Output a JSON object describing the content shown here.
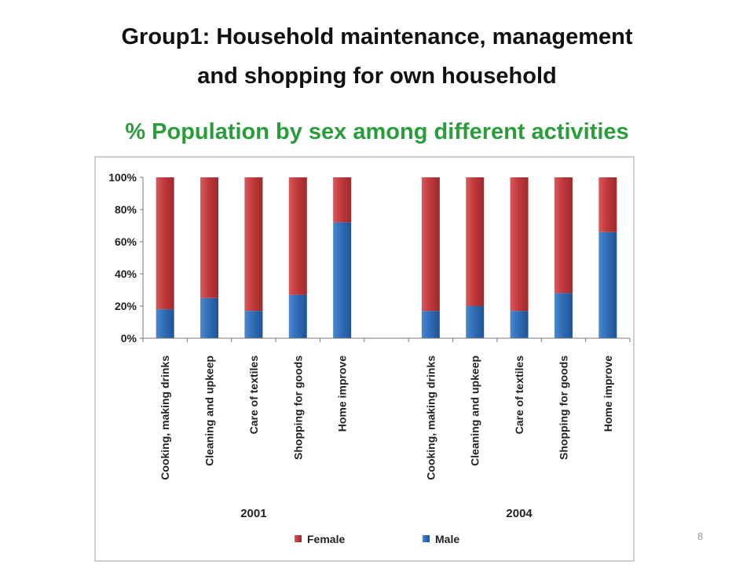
{
  "slide": {
    "title_line1": "Group1: Household maintenance, management",
    "title_line2": "and  shopping for own household",
    "subtitle": "% Population by sex among different activities",
    "page_number": "8"
  },
  "colors": {
    "female": "#c0393b",
    "male": "#2f6db6",
    "subtitle": "#2a9d3b"
  },
  "chart_data": {
    "type": "bar",
    "stacked": true,
    "percent_stacked": true,
    "categories": [
      "Cooking,  making drinks",
      "Cleaning and upkeep",
      "Care of textiles",
      "Shopping for  goods",
      "Home improve",
      "",
      "Cooking,  making drinks",
      "Cleaning and upkeep",
      "Care of textiles",
      "Shopping for  goods",
      "Home improve"
    ],
    "groups": [
      {
        "label": "2001",
        "start": 0,
        "end": 4
      },
      {
        "label": "2004",
        "start": 6,
        "end": 10
      }
    ],
    "series": [
      {
        "name": "Male",
        "color": "#2f6db6",
        "values": [
          18,
          25,
          17,
          27,
          72,
          null,
          17,
          20,
          17,
          28,
          66
        ]
      },
      {
        "name": "Female",
        "color": "#c0393b",
        "values": [
          82,
          75,
          83,
          73,
          28,
          null,
          83,
          80,
          83,
          72,
          34
        ]
      }
    ],
    "legend": {
      "entries": [
        "Female",
        "Male"
      ],
      "position": "bottom"
    },
    "yticks": [
      "0%",
      "20%",
      "40%",
      "60%",
      "80%",
      "100%"
    ],
    "ylim": [
      0,
      100
    ],
    "grid": false
  }
}
